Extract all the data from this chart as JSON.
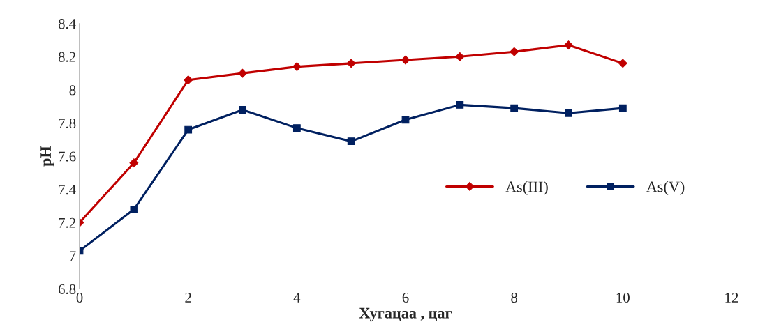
{
  "chart_data": {
    "type": "line",
    "xlabel": "Хугацаа , цаг",
    "ylabel": "pH",
    "x": [
      0,
      1,
      2,
      3,
      4,
      5,
      6,
      7,
      8,
      9,
      10
    ],
    "series": [
      {
        "name": "As(III)",
        "color": "#c00000",
        "marker": "diamond",
        "values": [
          7.2,
          7.56,
          8.06,
          8.1,
          8.14,
          8.16,
          8.18,
          8.2,
          8.23,
          8.27,
          8.16
        ]
      },
      {
        "name": "As(V)",
        "color": "#002060",
        "marker": "square",
        "values": [
          7.03,
          7.28,
          7.76,
          7.88,
          7.77,
          7.69,
          7.82,
          7.91,
          7.89,
          7.86,
          7.89
        ]
      }
    ],
    "xlim": [
      0,
      12
    ],
    "xticks": [
      0,
      2,
      4,
      6,
      8,
      10,
      12
    ],
    "ylim": [
      6.8,
      8.4
    ],
    "yticks": [
      6.8,
      7,
      7.2,
      7.4,
      7.6,
      7.8,
      8,
      8.2,
      8.4
    ],
    "grid": false,
    "legend": "right",
    "line_style": "solid"
  }
}
